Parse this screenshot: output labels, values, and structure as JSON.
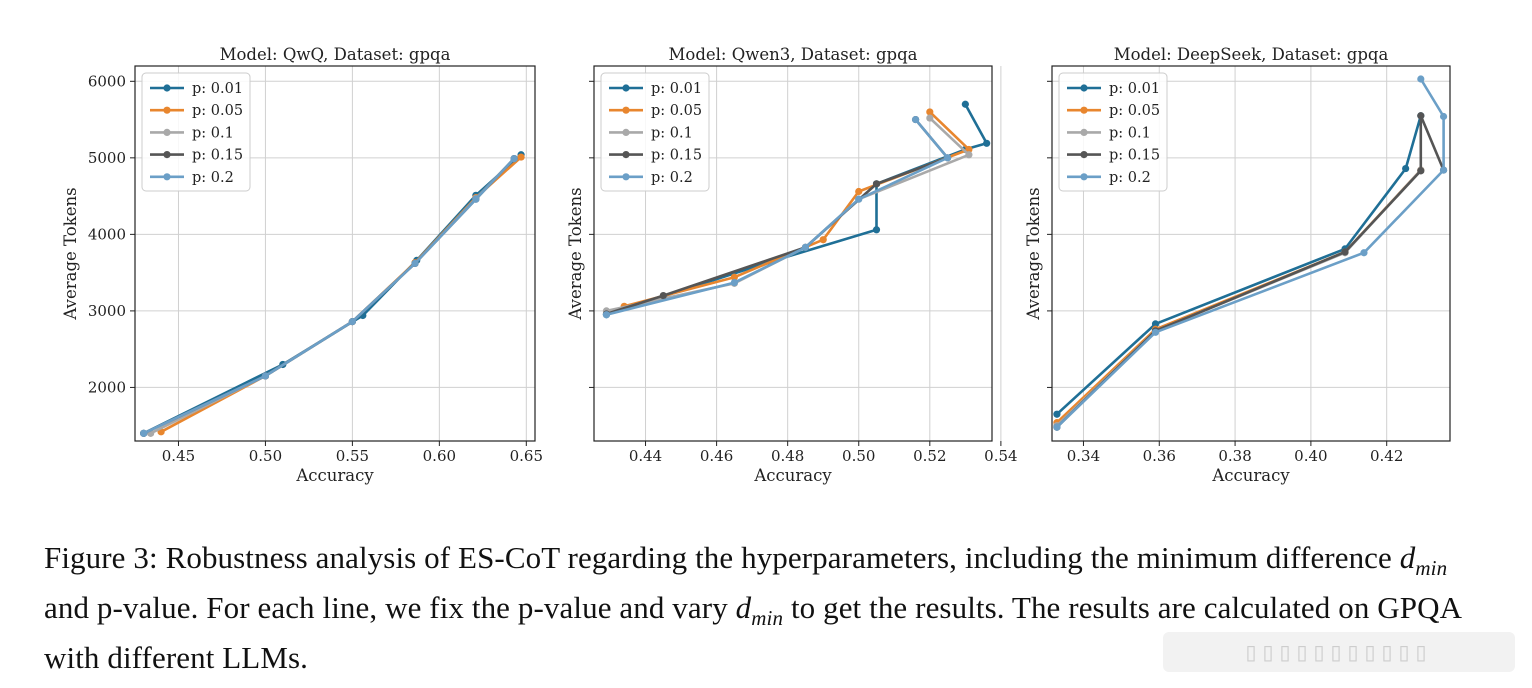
{
  "chart_data": [
    {
      "type": "line",
      "title": "Model: QwQ, Dataset: gpqa",
      "xlabel": "Accuracy",
      "ylabel": "Average Tokens",
      "xlim": [
        0.425,
        0.655
      ],
      "ylim": [
        1300,
        6200
      ],
      "xticks": [
        0.45,
        0.5,
        0.55,
        0.6,
        0.65
      ],
      "xtick_labels": [
        "0.45",
        "0.50",
        "0.55",
        "0.60",
        "0.65"
      ],
      "yticks": [
        2000,
        3000,
        4000,
        5000,
        6000
      ],
      "ytick_labels": [
        "2000",
        "3000",
        "4000",
        "5000",
        "6000"
      ],
      "show_y_labels": true,
      "grid": true,
      "legend": "upper-left",
      "series": [
        {
          "name": "p: 0.01",
          "color": "#1f6f96",
          "x": [
            0.43,
            0.51,
            0.556,
            0.587,
            0.621,
            0.647
          ],
          "y": [
            1400,
            2300,
            2940,
            3660,
            4510,
            5040
          ]
        },
        {
          "name": "p: 0.05",
          "color": "#e8862e",
          "x": [
            0.44,
            0.5,
            0.55,
            0.586,
            0.621,
            0.647
          ],
          "y": [
            1420,
            2150,
            2860,
            3630,
            4480,
            5010
          ]
        },
        {
          "name": "p: 0.1",
          "color": "#a9a9a9",
          "x": [
            0.434,
            0.5,
            0.55,
            0.586,
            0.621,
            0.643
          ],
          "y": [
            1400,
            2150,
            2860,
            3620,
            4470,
            4990
          ]
        },
        {
          "name": "p: 0.15",
          "color": "#555555",
          "x": [
            0.43,
            0.5,
            0.55,
            0.586,
            0.621,
            0.643
          ],
          "y": [
            1400,
            2150,
            2860,
            3620,
            4460,
            4990
          ]
        },
        {
          "name": "p: 0.2",
          "color": "#6b9fc7",
          "x": [
            0.43,
            0.5,
            0.55,
            0.586,
            0.621,
            0.643
          ],
          "y": [
            1400,
            2150,
            2860,
            3620,
            4460,
            4990
          ]
        }
      ]
    },
    {
      "type": "line",
      "title": "Model: Qwen3, Dataset: gpqa",
      "xlabel": "Accuracy",
      "ylabel": "Average Tokens",
      "xlim": [
        0.4255,
        0.5375
      ],
      "ylim": [
        1300,
        6200
      ],
      "xticks": [
        0.44,
        0.46,
        0.48,
        0.5,
        0.52,
        0.54
      ],
      "xtick_labels": [
        "0.44",
        "0.46",
        "0.48",
        "0.50",
        "0.52",
        "0.54"
      ],
      "yticks": [
        2000,
        3000,
        4000,
        5000,
        6000
      ],
      "ytick_labels": [],
      "show_y_labels": false,
      "grid": true,
      "legend": "upper-left",
      "series": [
        {
          "name": "p: 0.01",
          "color": "#1f6f96",
          "x": [
            0.429,
            0.475,
            0.505,
            0.505,
            0.53,
            0.536,
            0.53
          ],
          "y": [
            2950,
            3640,
            4060,
            4660,
            5110,
            5190,
            5700
          ]
        },
        {
          "name": "p: 0.05",
          "color": "#e8862e",
          "x": [
            0.434,
            0.465,
            0.49,
            0.5,
            0.531,
            0.52
          ],
          "y": [
            3060,
            3440,
            3930,
            4560,
            5110,
            5600
          ]
        },
        {
          "name": "p: 0.1",
          "color": "#a9a9a9",
          "x": [
            0.429,
            0.465,
            0.485,
            0.5,
            0.531,
            0.52
          ],
          "y": [
            3000,
            3360,
            3830,
            4460,
            5040,
            5520
          ]
        },
        {
          "name": "p: 0.15",
          "color": "#555555",
          "x": [
            0.429,
            0.445,
            0.485,
            0.505,
            0.525,
            0.516
          ],
          "y": [
            2960,
            3200,
            3830,
            4660,
            5000,
            5500
          ]
        },
        {
          "name": "p: 0.2",
          "color": "#6b9fc7",
          "x": [
            0.429,
            0.465,
            0.485,
            0.5,
            0.525,
            0.516
          ],
          "y": [
            2950,
            3370,
            3830,
            4460,
            5000,
            5500
          ]
        }
      ]
    },
    {
      "type": "line",
      "title": "Model: DeepSeek, Dataset: gpqa",
      "xlabel": "Accuracy",
      "ylabel": "Average Tokens",
      "xlim": [
        0.3317,
        0.4367
      ],
      "ylim": [
        1300,
        6200
      ],
      "xticks": [
        0.34,
        0.36,
        0.38,
        0.4,
        0.42
      ],
      "xtick_labels": [
        "0.34",
        "0.36",
        "0.38",
        "0.40",
        "0.42"
      ],
      "yticks": [
        2000,
        3000,
        4000,
        5000,
        6000
      ],
      "ytick_labels": [],
      "show_y_labels": false,
      "grid": true,
      "legend": "upper-left",
      "series": [
        {
          "name": "p: 0.01",
          "color": "#1f6f96",
          "x": [
            0.333,
            0.359,
            0.409,
            0.425,
            0.429
          ],
          "y": [
            1650,
            2830,
            3810,
            4860,
            5550
          ]
        },
        {
          "name": "p: 0.05",
          "color": "#e8862e",
          "x": [
            0.333,
            0.359,
            0.409,
            0.429
          ],
          "y": [
            1540,
            2760,
            3770,
            4840
          ]
        },
        {
          "name": "p: 0.1",
          "color": "#a9a9a9",
          "x": [
            0.333,
            0.359,
            0.409,
            0.429
          ],
          "y": [
            1500,
            2740,
            3760,
            4840
          ]
        },
        {
          "name": "p: 0.15",
          "color": "#555555",
          "x": [
            0.333,
            0.359,
            0.409,
            0.429,
            0.429,
            0.435
          ],
          "y": [
            1480,
            2740,
            3770,
            4830,
            5550,
            4840
          ]
        },
        {
          "name": "p: 0.2",
          "color": "#6b9fc7",
          "x": [
            0.333,
            0.359,
            0.414,
            0.435,
            0.435,
            0.429
          ],
          "y": [
            1480,
            2720,
            3760,
            4840,
            5540,
            6030
          ]
        }
      ]
    }
  ],
  "caption": {
    "figure_label": "Figure 3:",
    "part1": "Robustness analysis of ES-CoT regarding the hyperparameters, including the minimum difference",
    "math_d": "d",
    "math_sub": "min",
    "part2": "and p-value. For each line, we fix the p-value and vary",
    "part3": "to get the results. The results are calculated on GPQA with different LLMs."
  }
}
